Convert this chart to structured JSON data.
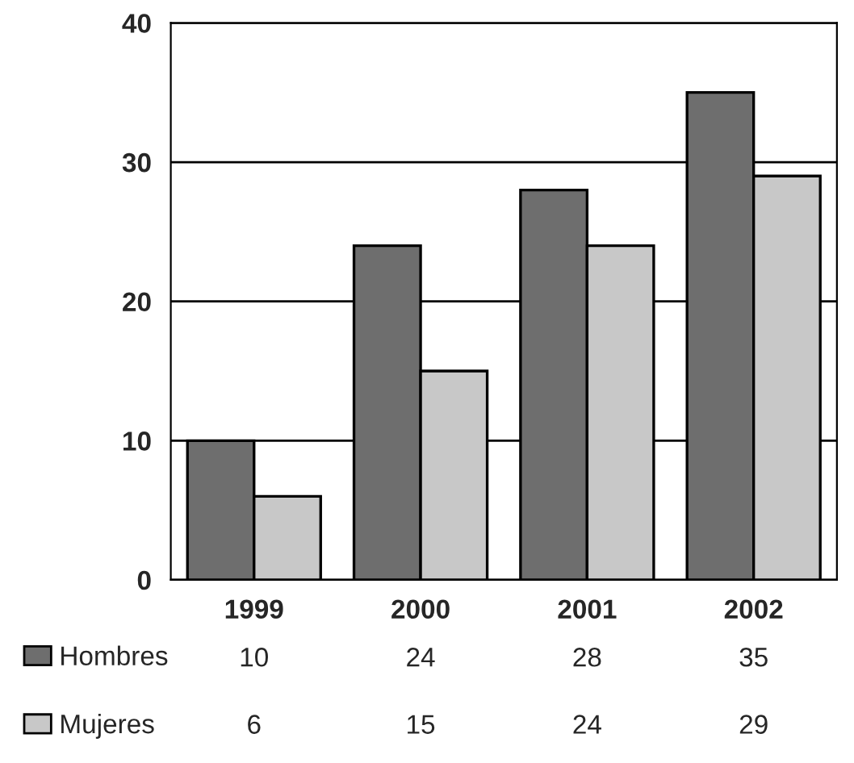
{
  "chart_data": {
    "type": "bar",
    "categories": [
      "1999",
      "2000",
      "2001",
      "2002"
    ],
    "series": [
      {
        "name": "Hombres",
        "color": "#6e6e6e",
        "values": [
          10,
          24,
          28,
          35
        ]
      },
      {
        "name": "Mujeres",
        "color": "#c8c8c8",
        "values": [
          6,
          15,
          24,
          29
        ]
      }
    ],
    "ylim": [
      0,
      40
    ],
    "yticks": [
      0,
      10,
      20,
      30,
      40
    ],
    "grid": "y",
    "legend": "bottom",
    "data_labels": true
  }
}
